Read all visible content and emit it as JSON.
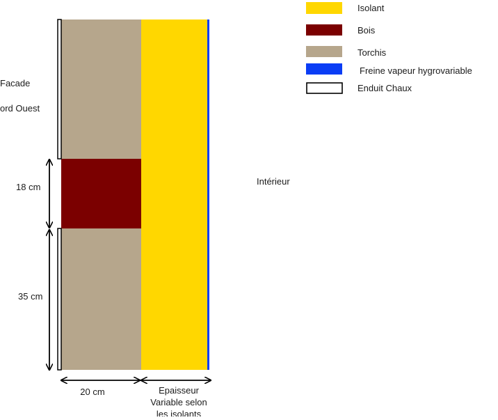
{
  "legend": {
    "items": [
      {
        "label": "Isolant",
        "color": "#FFD700"
      },
      {
        "label": "Bois",
        "color": "#7B0000"
      },
      {
        "label": "Torchis",
        "color": "#B6A68C"
      },
      {
        "label": "Freine vapeur hygrovariable",
        "color": "#0A3DF5"
      },
      {
        "label": "Enduit Chaux",
        "color": "#FFFFFF"
      }
    ]
  },
  "labels": {
    "facade_line1": "Facade",
    "facade_line2": "ord Ouest",
    "interior": "Intérieur",
    "dim_bois": "18 cm",
    "dim_torchis": "35 cm",
    "dim_wall_width": "20 cm",
    "dim_insulation_line1": "Epaisseur",
    "dim_insulation_line2": "Variable selon",
    "dim_insulation_line3": "les isolants"
  },
  "colors": {
    "isolant": "#FFD700",
    "bois": "#7B0000",
    "torchis": "#B6A68C",
    "freine_vapeur": "#0A3DF5",
    "enduit": "#FFFFFF",
    "line": "#000000"
  }
}
